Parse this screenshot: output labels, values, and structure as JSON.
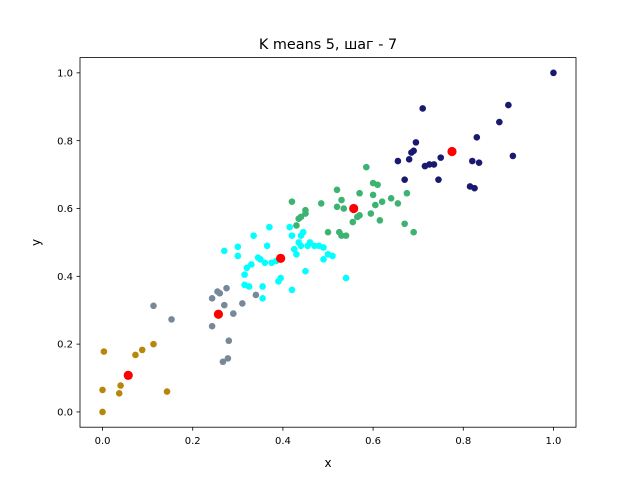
{
  "chart_data": {
    "type": "scatter",
    "title": "K means 5, шаг - 7",
    "xlabel": "x",
    "ylabel": "y",
    "xlim": [
      -0.05,
      1.05
    ],
    "ylim": [
      -0.045,
      1.045
    ],
    "xticks": [
      "0.0",
      "0.2",
      "0.4",
      "0.6",
      "0.8",
      "1.0"
    ],
    "yticks": [
      "0.0",
      "0.2",
      "0.4",
      "0.6",
      "0.8",
      "1.0"
    ],
    "grid": false,
    "legend": "none",
    "clusters": [
      {
        "color": "#b8860b",
        "points": [
          [
            0.0,
            0.0
          ],
          [
            0.0,
            0.065
          ],
          [
            0.003,
            0.178
          ],
          [
            0.037,
            0.055
          ],
          [
            0.04,
            0.078
          ],
          [
            0.073,
            0.168
          ],
          [
            0.088,
            0.183
          ],
          [
            0.113,
            0.2
          ],
          [
            0.143,
            0.06
          ]
        ]
      },
      {
        "color": "#778899",
        "points": [
          [
            0.113,
            0.313
          ],
          [
            0.153,
            0.273
          ],
          [
            0.243,
            0.253
          ],
          [
            0.243,
            0.335
          ],
          [
            0.255,
            0.355
          ],
          [
            0.26,
            0.35
          ],
          [
            0.267,
            0.148
          ],
          [
            0.27,
            0.315
          ],
          [
            0.275,
            0.365
          ],
          [
            0.278,
            0.158
          ],
          [
            0.28,
            0.21
          ],
          [
            0.29,
            0.29
          ],
          [
            0.31,
            0.32
          ],
          [
            0.34,
            0.345
          ]
        ]
      },
      {
        "color": "#00ffff",
        "points": [
          [
            0.27,
            0.475
          ],
          [
            0.3,
            0.487
          ],
          [
            0.3,
            0.46
          ],
          [
            0.315,
            0.405
          ],
          [
            0.315,
            0.375
          ],
          [
            0.32,
            0.425
          ],
          [
            0.325,
            0.37
          ],
          [
            0.33,
            0.435
          ],
          [
            0.335,
            0.52
          ],
          [
            0.345,
            0.455
          ],
          [
            0.35,
            0.45
          ],
          [
            0.355,
            0.37
          ],
          [
            0.355,
            0.335
          ],
          [
            0.36,
            0.44
          ],
          [
            0.365,
            0.49
          ],
          [
            0.37,
            0.545
          ],
          [
            0.375,
            0.44
          ],
          [
            0.385,
            0.445
          ],
          [
            0.39,
            0.385
          ],
          [
            0.395,
            0.395
          ],
          [
            0.415,
            0.545
          ],
          [
            0.42,
            0.36
          ],
          [
            0.42,
            0.52
          ],
          [
            0.425,
            0.48
          ],
          [
            0.43,
            0.465
          ],
          [
            0.435,
            0.5
          ],
          [
            0.44,
            0.52
          ],
          [
            0.44,
            0.49
          ],
          [
            0.445,
            0.53
          ],
          [
            0.45,
            0.415
          ],
          [
            0.455,
            0.49
          ],
          [
            0.46,
            0.5
          ],
          [
            0.47,
            0.49
          ],
          [
            0.48,
            0.49
          ],
          [
            0.49,
            0.485
          ],
          [
            0.49,
            0.45
          ],
          [
            0.5,
            0.465
          ],
          [
            0.51,
            0.46
          ],
          [
            0.54,
            0.395
          ]
        ]
      },
      {
        "color": "#3cb371",
        "points": [
          [
            0.42,
            0.62
          ],
          [
            0.43,
            0.55
          ],
          [
            0.435,
            0.57
          ],
          [
            0.44,
            0.575
          ],
          [
            0.45,
            0.595
          ],
          [
            0.45,
            0.585
          ],
          [
            0.485,
            0.615
          ],
          [
            0.5,
            0.53
          ],
          [
            0.52,
            0.605
          ],
          [
            0.52,
            0.655
          ],
          [
            0.525,
            0.53
          ],
          [
            0.53,
            0.52
          ],
          [
            0.53,
            0.625
          ],
          [
            0.535,
            0.6
          ],
          [
            0.54,
            0.52
          ],
          [
            0.555,
            0.56
          ],
          [
            0.565,
            0.575
          ],
          [
            0.57,
            0.58
          ],
          [
            0.57,
            0.645
          ],
          [
            0.585,
            0.722
          ],
          [
            0.595,
            0.585
          ],
          [
            0.6,
            0.64
          ],
          [
            0.6,
            0.675
          ],
          [
            0.605,
            0.61
          ],
          [
            0.61,
            0.67
          ],
          [
            0.615,
            0.565
          ],
          [
            0.62,
            0.62
          ],
          [
            0.64,
            0.63
          ],
          [
            0.655,
            0.615
          ],
          [
            0.67,
            0.555
          ],
          [
            0.675,
            0.645
          ],
          [
            0.69,
            0.53
          ]
        ]
      },
      {
        "color": "#191970",
        "points": [
          [
            0.655,
            0.74
          ],
          [
            0.67,
            0.685
          ],
          [
            0.68,
            0.745
          ],
          [
            0.685,
            0.765
          ],
          [
            0.69,
            0.77
          ],
          [
            0.695,
            0.795
          ],
          [
            0.71,
            0.895
          ],
          [
            0.715,
            0.725
          ],
          [
            0.725,
            0.73
          ],
          [
            0.735,
            0.73
          ],
          [
            0.745,
            0.685
          ],
          [
            0.75,
            0.75
          ],
          [
            0.775,
            0.77
          ],
          [
            0.815,
            0.665
          ],
          [
            0.82,
            0.74
          ],
          [
            0.825,
            0.66
          ],
          [
            0.83,
            0.81
          ],
          [
            0.835,
            0.735
          ],
          [
            0.88,
            0.855
          ],
          [
            0.9,
            0.905
          ],
          [
            0.91,
            0.755
          ],
          [
            1.0,
            1.0
          ]
        ]
      }
    ],
    "centroids": {
      "color": "#ff0000",
      "points": [
        [
          0.057,
          0.108
        ],
        [
          0.257,
          0.288
        ],
        [
          0.395,
          0.453
        ],
        [
          0.557,
          0.6
        ],
        [
          0.775,
          0.768
        ]
      ]
    }
  }
}
